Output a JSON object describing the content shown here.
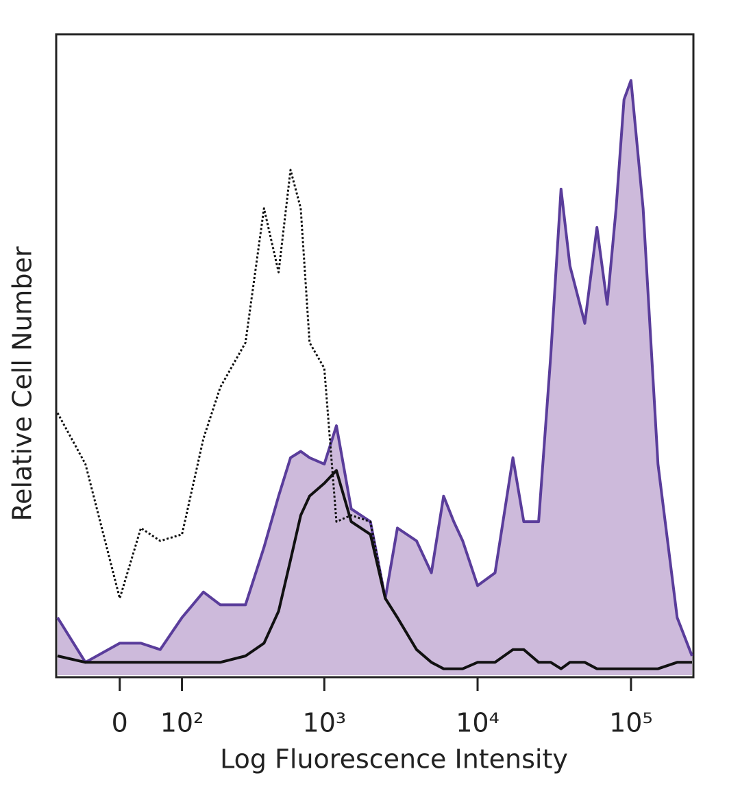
{
  "chart_data": {
    "type": "line",
    "x_label": "Log Fluorescence Intensity",
    "y_label": "Relative Cell Number",
    "xscale": "biexponential",
    "xlim": [
      -100,
      250000
    ],
    "ylim": [
      0,
      100
    ],
    "xticks": [
      0,
      {
        "value": 100,
        "label": "10²"
      },
      {
        "value": 1000,
        "label": "10³"
      },
      {
        "value": 10000,
        "label": "10⁴"
      },
      {
        "value": 100000,
        "label": "10⁵"
      }
    ],
    "x": [
      -100,
      -50,
      0,
      30,
      60,
      100,
      150,
      200,
      300,
      400,
      500,
      600,
      700,
      800,
      1000,
      1200,
      1500,
      2000,
      2500,
      3000,
      4000,
      5000,
      6000,
      7000,
      8000,
      10000,
      13000,
      17000,
      20000,
      25000,
      30000,
      35000,
      40000,
      50000,
      60000,
      70000,
      80000,
      90000,
      100000,
      120000,
      150000,
      200000,
      250000
    ],
    "series": [
      {
        "color": "#5a3d9b",
        "fill": "#cdbadb",
        "line_style": "solid",
        "values": [
          9,
          2,
          5,
          5,
          4,
          9,
          13,
          11,
          11,
          20,
          28,
          34,
          35,
          34,
          33,
          39,
          26,
          24,
          12,
          23,
          21,
          16,
          28,
          24,
          21,
          14,
          16,
          34,
          24,
          24,
          50,
          76,
          64,
          55,
          70,
          58,
          73,
          90,
          93,
          73,
          33,
          9,
          3
        ]
      },
      {
        "color": "#111111",
        "line_style": "dotted",
        "values": [
          41,
          33,
          12,
          23,
          21,
          22,
          37,
          45,
          52,
          73,
          63,
          79,
          73,
          52,
          48,
          24,
          25,
          24,
          12,
          9,
          4,
          2,
          1,
          1,
          1,
          2,
          2,
          4,
          4,
          2,
          2,
          1,
          2,
          2,
          1,
          1,
          1,
          1,
          1,
          1,
          1,
          2,
          2
        ]
      },
      {
        "color": "#111111",
        "line_style": "solid",
        "values": [
          3,
          2,
          2,
          2,
          2,
          2,
          2,
          2,
          3,
          5,
          10,
          18,
          25,
          28,
          30,
          32,
          24,
          22,
          12,
          9,
          4,
          2,
          1,
          1,
          1,
          2,
          2,
          4,
          4,
          2,
          2,
          1,
          2,
          2,
          1,
          1,
          1,
          1,
          1,
          1,
          1,
          2,
          2
        ]
      }
    ]
  }
}
